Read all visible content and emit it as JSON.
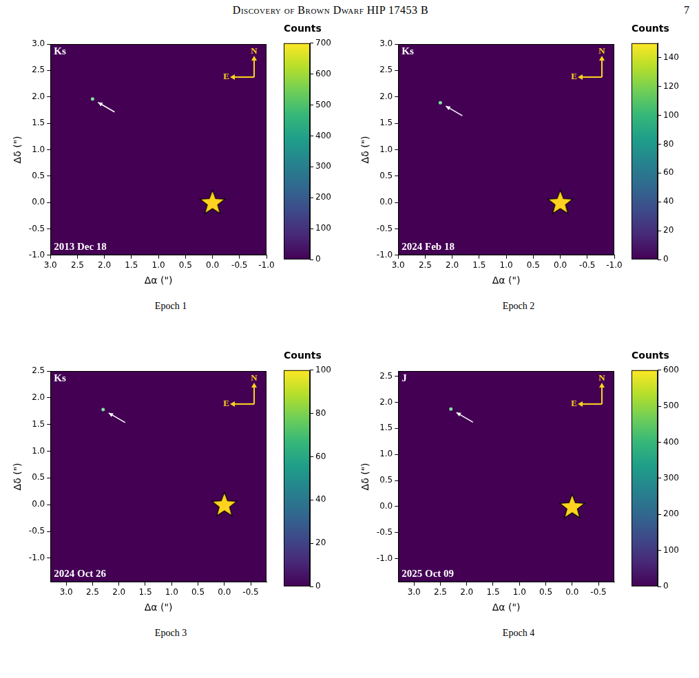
{
  "header": {
    "title": "Discovery of Brown Dwarf HIP 17453 B",
    "page": "7"
  },
  "chart_data": [
    {
      "type": "scatter",
      "caption": "Epoch 1",
      "band": "Ks",
      "date": "2013 Dec 18",
      "x_label": "Δα (\")",
      "y_label": "Δδ (\")",
      "grid": false,
      "xlim": [
        3.0,
        -1.0
      ],
      "xticks": [
        {
          "value": 3,
          "label": "3.0"
        },
        2.5,
        {
          "value": 2,
          "label": "2.0"
        },
        1.5,
        {
          "value": 1,
          "label": "1.0"
        },
        0.5,
        {
          "value": 0,
          "label": "0.0"
        },
        -0.5,
        {
          "value": -1,
          "label": "-1.0"
        }
      ],
      "ylim": [
        -1.0,
        3.0
      ],
      "yticks": [
        {
          "value": -1,
          "label": "-1.0"
        },
        -0.5,
        {
          "value": 0,
          "label": "0.0"
        },
        0.5,
        {
          "value": 1,
          "label": "1.0"
        },
        1.5,
        {
          "value": 2,
          "label": "2.0"
        },
        2.5,
        {
          "value": 3,
          "label": "3.0"
        }
      ],
      "star": {
        "x": 0.0,
        "y": 0.0,
        "marker": "star",
        "color": "#ffd21f"
      },
      "companion": {
        "x": 2.22,
        "y": 1.96,
        "marker": "circle",
        "color": "#7fe0a0"
      },
      "compass": [
        "N",
        "E"
      ],
      "colorbar": {
        "title": "Counts",
        "range": [
          0,
          700
        ],
        "ticks": [
          0,
          100,
          200,
          300,
          400,
          500,
          600,
          700
        ]
      }
    },
    {
      "type": "scatter",
      "caption": "Epoch 2",
      "band": "Ks",
      "date": "2024 Feb 18",
      "x_label": "Δα (\")",
      "y_label": "Δδ (\")",
      "grid": false,
      "xlim": [
        3.0,
        -1.0
      ],
      "xticks": [
        {
          "value": 3,
          "label": "3.0"
        },
        2.5,
        {
          "value": 2,
          "label": "2.0"
        },
        1.5,
        {
          "value": 1,
          "label": "1.0"
        },
        0.5,
        {
          "value": 0,
          "label": "0.0"
        },
        -0.5,
        {
          "value": -1,
          "label": "-1.0"
        }
      ],
      "ylim": [
        -1.0,
        3.0
      ],
      "yticks": [
        {
          "value": -1,
          "label": "-1.0"
        },
        -0.5,
        {
          "value": 0,
          "label": "0.0"
        },
        0.5,
        {
          "value": 1,
          "label": "1.0"
        },
        1.5,
        {
          "value": 2,
          "label": "2.0"
        },
        2.5,
        {
          "value": 3,
          "label": "3.0"
        }
      ],
      "star": {
        "x": 0.0,
        "y": 0.0,
        "marker": "star",
        "color": "#ffd21f"
      },
      "companion": {
        "x": 2.22,
        "y": 1.89,
        "marker": "circle",
        "color": "#7fe0a0"
      },
      "compass": [
        "N",
        "E"
      ],
      "colorbar": {
        "title": "Counts",
        "range": [
          0,
          150
        ],
        "ticks": [
          0,
          20,
          40,
          60,
          80,
          100,
          120,
          140
        ]
      }
    },
    {
      "type": "scatter",
      "caption": "Epoch 3",
      "band": "Ks",
      "date": "2024 Oct 26",
      "x_label": "Δα (\")",
      "y_label": "Δδ (\")",
      "grid": false,
      "xlim": [
        3.3,
        -0.8
      ],
      "xticks": [
        {
          "value": 3,
          "label": "3.0"
        },
        2.5,
        {
          "value": 2,
          "label": "2.0"
        },
        1.5,
        {
          "value": 1,
          "label": "1.0"
        },
        0.5,
        {
          "value": 0,
          "label": "0.0"
        },
        -0.5
      ],
      "ylim": [
        -1.45,
        2.5
      ],
      "yticks": [
        {
          "value": -1,
          "label": "-1.0"
        },
        -0.5,
        {
          "value": 0,
          "label": "0.0"
        },
        0.5,
        {
          "value": 1,
          "label": "1.0"
        },
        1.5,
        {
          "value": 2,
          "label": "2.0"
        },
        2.5
      ],
      "star": {
        "x": 0.0,
        "y": 0.0,
        "marker": "star",
        "color": "#ffd21f"
      },
      "companion": {
        "x": 2.3,
        "y": 1.78,
        "marker": "circle",
        "color": "#7fe0a0"
      },
      "compass": [
        "N",
        "E"
      ],
      "colorbar": {
        "title": "Counts",
        "range": [
          0,
          100
        ],
        "ticks": [
          0,
          20,
          40,
          60,
          80,
          100
        ]
      }
    },
    {
      "type": "scatter",
      "caption": "Epoch 4",
      "band": "J",
      "date": "2025 Oct 09",
      "x_label": "Δα (\")",
      "y_label": "Δδ (\")",
      "grid": false,
      "xlim": [
        3.3,
        -0.8
      ],
      "xticks": [
        {
          "value": 3,
          "label": "3.0"
        },
        2.5,
        {
          "value": 2,
          "label": "2.0"
        },
        1.5,
        {
          "value": 1,
          "label": "1.0"
        },
        0.5,
        {
          "value": 0,
          "label": "0.0"
        },
        -0.5
      ],
      "ylim": [
        -1.45,
        2.6
      ],
      "yticks": [
        {
          "value": -1,
          "label": "-1.0"
        },
        -0.5,
        {
          "value": 0,
          "label": "0.0"
        },
        0.5,
        {
          "value": 1,
          "label": "1.0"
        },
        1.5,
        {
          "value": 2,
          "label": "2.0"
        },
        2.5
      ],
      "star": {
        "x": 0.0,
        "y": 0.0,
        "marker": "star",
        "color": "#ffd21f"
      },
      "companion": {
        "x": 2.3,
        "y": 1.87,
        "marker": "circle",
        "color": "#7fe0a0"
      },
      "compass": [
        "N",
        "E"
      ],
      "colorbar": {
        "title": "Counts",
        "range": [
          0,
          600
        ],
        "ticks": [
          0,
          100,
          200,
          300,
          400,
          500,
          600
        ]
      }
    }
  ]
}
